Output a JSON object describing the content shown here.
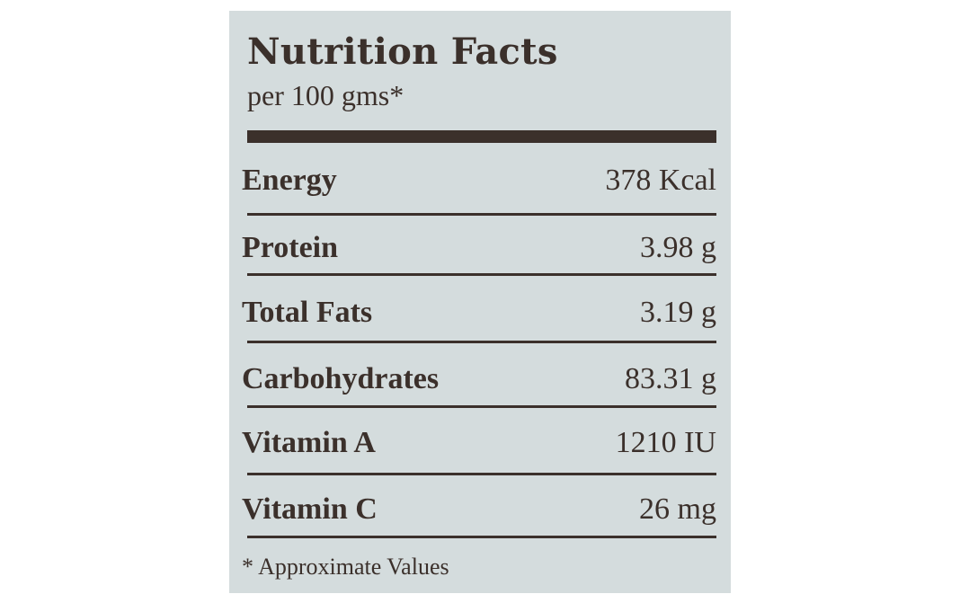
{
  "label": {
    "title": "Nutrition Facts",
    "serving": "per 100 gms*",
    "rows": [
      {
        "name": "Energy",
        "value": "378 Kcal"
      },
      {
        "name": "Protein",
        "value": "3.98 g"
      },
      {
        "name": "Total Fats",
        "value": "3.19 g"
      },
      {
        "name": "Carbohydrates",
        "value": "83.31 g"
      },
      {
        "name": "Vitamin A",
        "value": "1210 IU"
      },
      {
        "name": "Vitamin C",
        "value": "26 mg"
      }
    ],
    "footnote": "* Approximate Values"
  },
  "colors": {
    "background": "#d4dcdd",
    "text": "#3b302b"
  }
}
